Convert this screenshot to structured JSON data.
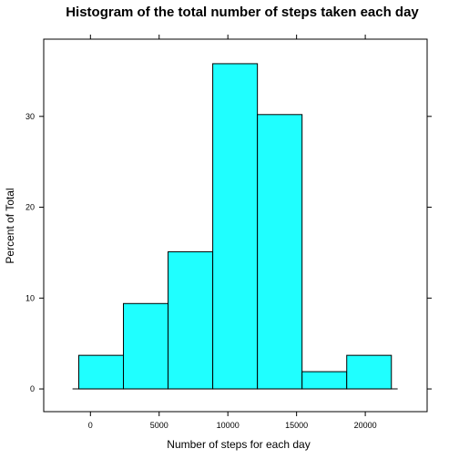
{
  "chart_data": {
    "type": "bar",
    "title": "Histogram of the total number of steps taken each day",
    "xlabel": "Number of steps for each day",
    "ylabel": "Percent of Total",
    "bin_edges": [
      -850,
      2400,
      5650,
      8900,
      12150,
      15400,
      18650,
      21900
    ],
    "values": [
      3.7,
      9.4,
      15.1,
      35.8,
      30.2,
      1.9,
      3.7
    ],
    "xlim": [
      -3400,
      24500
    ],
    "ylim": [
      -2.5,
      38.5
    ],
    "x_ticks": [
      0,
      5000,
      10000,
      15000,
      20000
    ],
    "x_tick_labels": [
      "0",
      "5000",
      "10000",
      "15000",
      "20000"
    ],
    "y_ticks": [
      0,
      10,
      20,
      30
    ],
    "y_tick_labels": [
      "0",
      "10",
      "20",
      "30"
    ],
    "bar_color": "#1FFFFF",
    "grid": false,
    "legend": "none"
  }
}
